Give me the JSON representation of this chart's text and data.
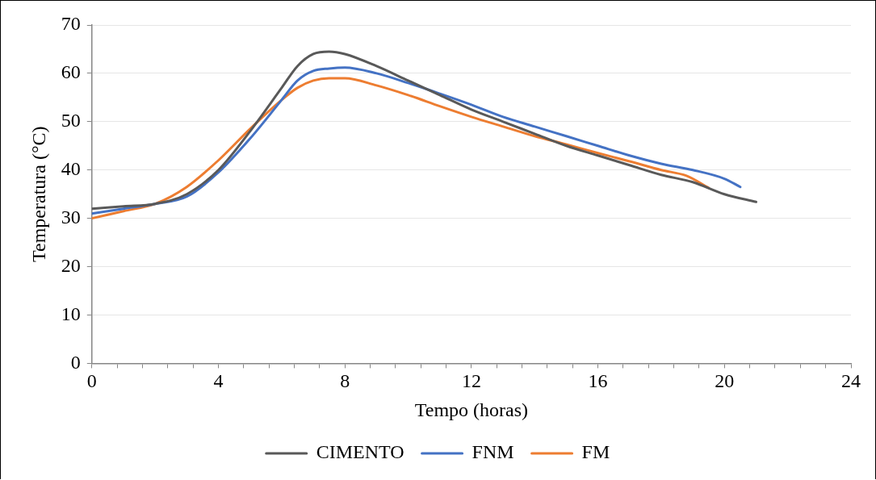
{
  "chart_data": {
    "type": "line",
    "xlabel": "Tempo (horas)",
    "ylabel": "Temperatura (°C)",
    "xlim": [
      0,
      24
    ],
    "xticks": [
      0,
      {
        "value": 0.8,
        "label": null
      },
      {
        "value": 1.6,
        "label": null
      },
      {
        "value": 2.4,
        "label": null
      },
      {
        "value": 3.2,
        "label": null
      },
      4,
      {
        "value": 4.8,
        "label": null
      },
      {
        "value": 5.6,
        "label": null
      },
      {
        "value": 6.4,
        "label": null
      },
      {
        "value": 7.2,
        "label": null
      },
      8,
      {
        "value": 8.8,
        "label": null
      },
      {
        "value": 9.6,
        "label": null
      },
      {
        "value": 10.4,
        "label": null
      },
      {
        "value": 11.2,
        "label": null
      },
      12,
      {
        "value": 12.8,
        "label": null
      },
      {
        "value": 13.6,
        "label": null
      },
      {
        "value": 14.4,
        "label": null
      },
      {
        "value": 15.2,
        "label": null
      },
      16,
      {
        "value": 16.8,
        "label": null
      },
      {
        "value": 17.6,
        "label": null
      },
      {
        "value": 18.4,
        "label": null
      },
      {
        "value": 19.2,
        "label": null
      },
      20,
      {
        "value": 20.8,
        "label": null
      },
      {
        "value": 21.6,
        "label": null
      },
      {
        "value": 22.4,
        "label": null
      },
      {
        "value": 23.2,
        "label": null
      },
      24
    ],
    "ylim": [
      0,
      70
    ],
    "yticks": [
      0,
      10,
      20,
      30,
      40,
      50,
      60,
      70
    ],
    "grid": "y",
    "legend": "bottom",
    "marker": "none",
    "line_style": "solid",
    "series": [
      {
        "name": "CIMENTO",
        "color": "#595959",
        "x": [
          0,
          1,
          2,
          3,
          4,
          5,
          6,
          6.5,
          7,
          7.5,
          8,
          9,
          10,
          11,
          12,
          13,
          14,
          15,
          16,
          17,
          18,
          19,
          20,
          21
        ],
        "values": [
          32,
          32.5,
          33,
          35,
          40,
          48,
          57,
          61.5,
          64,
          64.5,
          64,
          61.5,
          58.5,
          55.5,
          52.5,
          50,
          47.5,
          45,
          43,
          41,
          39,
          37.5,
          35,
          33.4
        ]
      },
      {
        "name": "FNM",
        "color": "#4472c4",
        "x": [
          0,
          1,
          2,
          3,
          4,
          5,
          6,
          6.5,
          7,
          7.5,
          8,
          9,
          10,
          11,
          12,
          13,
          14,
          15,
          16,
          17,
          18,
          19,
          20,
          20.5
        ],
        "values": [
          31,
          32,
          33,
          34.5,
          39.5,
          46.5,
          54.5,
          58.5,
          60.5,
          61,
          61.2,
          60,
          58,
          55.8,
          53.5,
          51,
          49,
          47,
          45,
          43,
          41.3,
          40,
          38.2,
          36.5
        ]
      },
      {
        "name": "FM",
        "color": "#ed7d31",
        "x": [
          0,
          1,
          2,
          3,
          4,
          5,
          6,
          6.5,
          7,
          7.5,
          8,
          9,
          10,
          11,
          12,
          13,
          14,
          15,
          16,
          17,
          18,
          18.8,
          19.5
        ],
        "values": [
          30,
          31.5,
          33,
          36.5,
          42,
          48.5,
          54.5,
          57,
          58.5,
          59,
          59,
          57.5,
          55.5,
          53.2,
          51,
          49,
          47,
          45.3,
          43.5,
          41.8,
          40,
          38.8,
          36.3
        ]
      }
    ]
  }
}
